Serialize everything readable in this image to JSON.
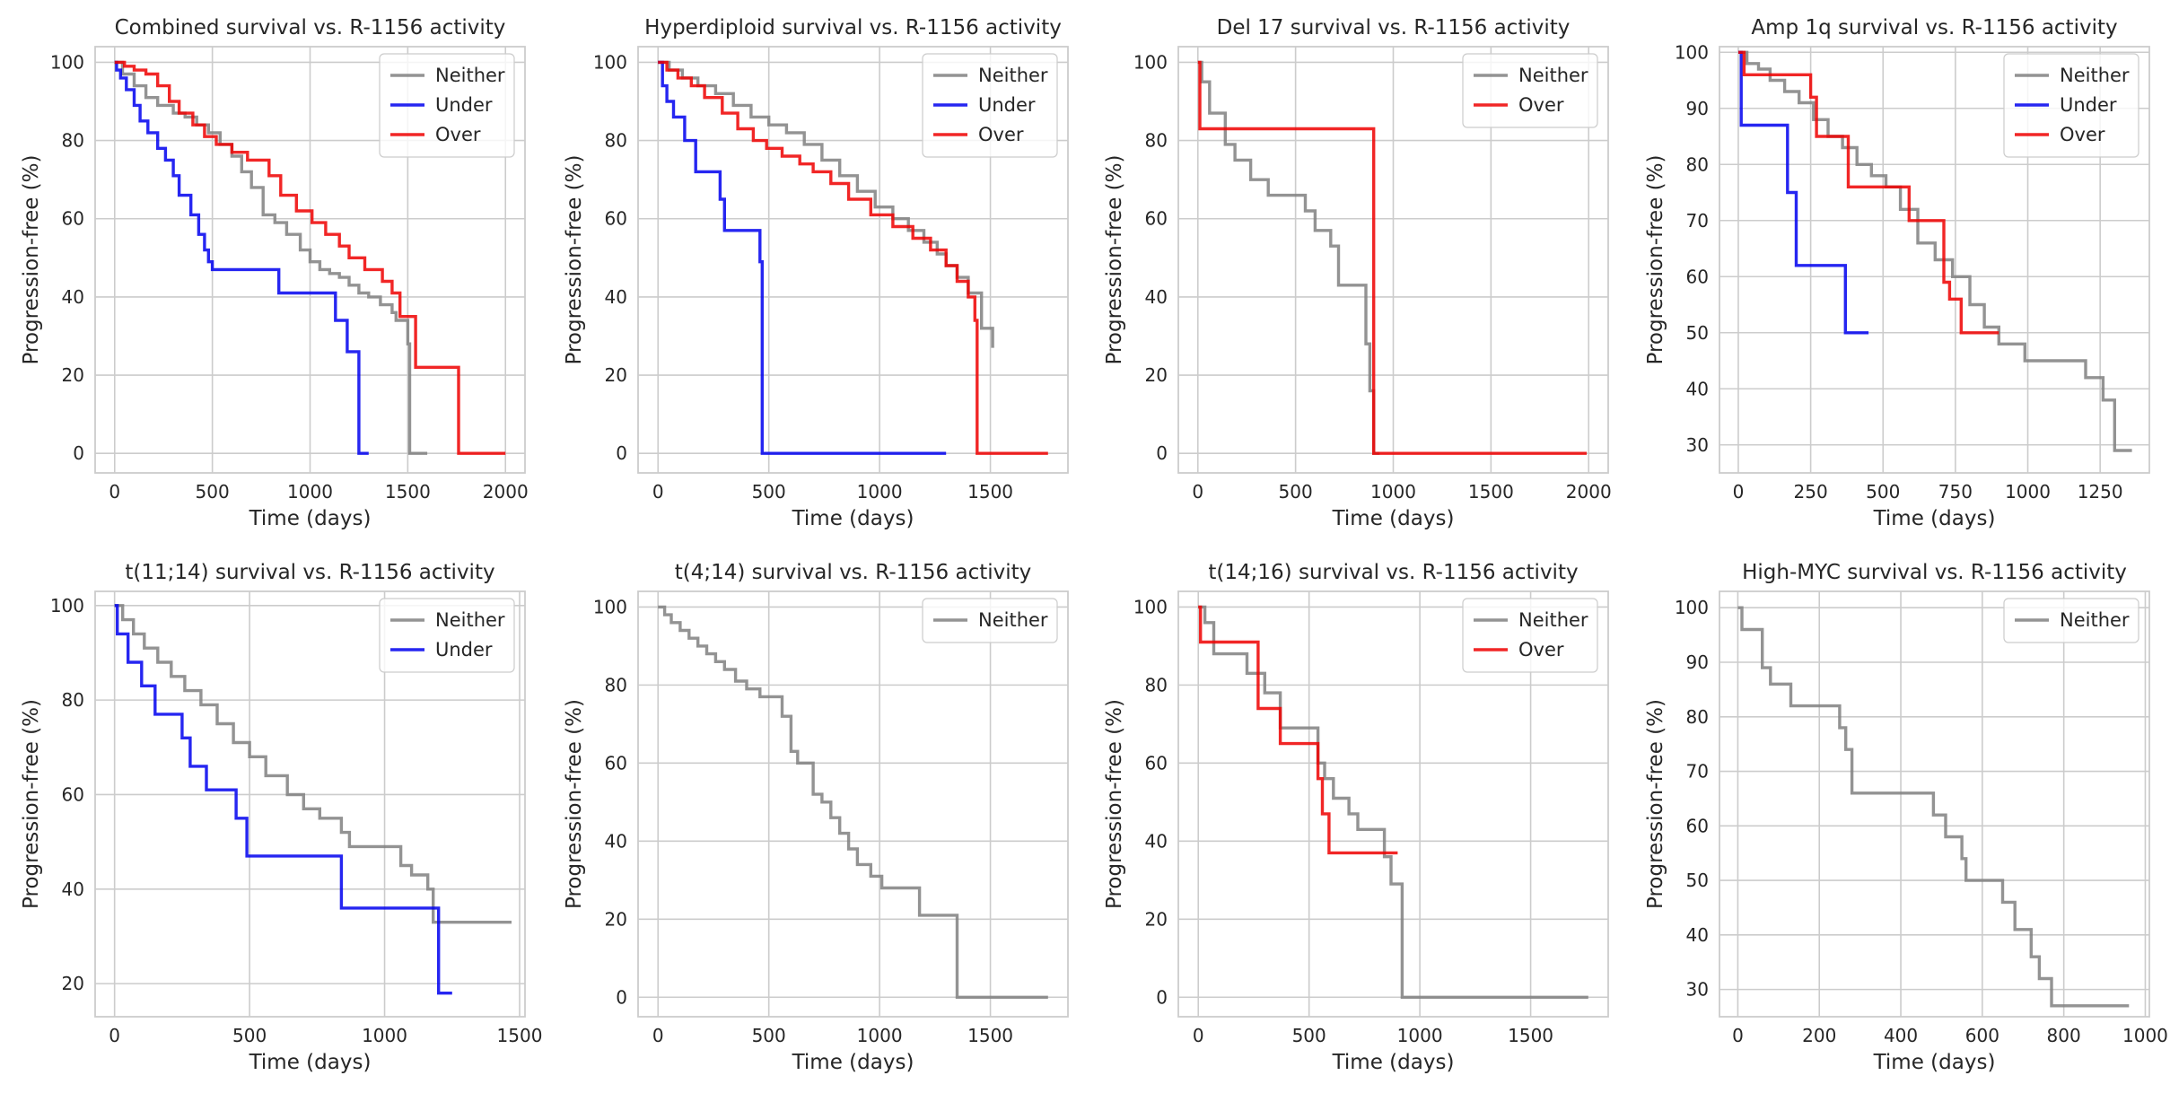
{
  "colors": {
    "Neither": "#808080",
    "Under": "#0000ee",
    "Over": "#ee0000"
  },
  "chart_data": [
    {
      "type": "line",
      "title": "Combined survival vs. R-1156 activity",
      "xlabel": "Time (days)",
      "ylabel": "Progression-free (%)",
      "xlim": [
        -100,
        2100
      ],
      "ylim": [
        -5,
        104
      ],
      "xticks": [
        0,
        500,
        1000,
        1500,
        2000
      ],
      "yticks": [
        0,
        20,
        40,
        60,
        80,
        100
      ],
      "legend": "top-right",
      "series": [
        {
          "name": "Neither",
          "x": [
            0,
            40,
            100,
            160,
            220,
            300,
            360,
            420,
            480,
            540,
            600,
            650,
            700,
            760,
            820,
            880,
            950,
            1000,
            1050,
            1100,
            1150,
            1200,
            1250,
            1300,
            1360,
            1420,
            1440,
            1470,
            1500,
            1510,
            1600
          ],
          "y": [
            100,
            97,
            94,
            91,
            89,
            87,
            86,
            84,
            82,
            79,
            76,
            72,
            68,
            61,
            59,
            56,
            52,
            49,
            47,
            46,
            45,
            43,
            41,
            40,
            38,
            36,
            34,
            34,
            28,
            0,
            0
          ]
        },
        {
          "name": "Under",
          "x": [
            0,
            10,
            30,
            60,
            100,
            130,
            170,
            220,
            260,
            300,
            330,
            390,
            430,
            460,
            480,
            500,
            840,
            1130,
            1190,
            1250,
            1300
          ],
          "y": [
            100,
            98,
            96,
            93,
            89,
            85,
            82,
            78,
            75,
            71,
            66,
            61,
            56,
            52,
            49,
            47,
            41,
            34,
            26,
            0,
            0
          ]
        },
        {
          "name": "Over",
          "x": [
            0,
            50,
            100,
            160,
            220,
            280,
            330,
            400,
            460,
            520,
            600,
            680,
            790,
            850,
            930,
            1010,
            1080,
            1150,
            1200,
            1280,
            1370,
            1420,
            1460,
            1540,
            1760,
            2000
          ],
          "y": [
            100,
            99,
            98,
            97,
            94,
            90,
            87,
            84,
            81,
            79,
            77,
            75,
            71,
            66,
            62,
            59,
            56,
            53,
            50,
            47,
            44,
            41,
            35,
            22,
            0,
            0
          ]
        }
      ]
    },
    {
      "type": "line",
      "title": "Hyperdiploid survival vs. R-1156 activity",
      "xlabel": "Time (days)",
      "ylabel": "Progression-free (%)",
      "xlim": [
        -90,
        1850
      ],
      "ylim": [
        -5,
        104
      ],
      "xticks": [
        0,
        500,
        1000,
        1500
      ],
      "yticks": [
        0,
        20,
        40,
        60,
        80,
        100
      ],
      "legend": "top-right",
      "series": [
        {
          "name": "Neither",
          "x": [
            0,
            50,
            110,
            180,
            260,
            340,
            420,
            500,
            580,
            660,
            740,
            820,
            900,
            980,
            1060,
            1130,
            1200,
            1260,
            1300,
            1350,
            1400,
            1460,
            1510
          ],
          "y": [
            100,
            98,
            96,
            94,
            92,
            89,
            86,
            84,
            82,
            79,
            75,
            71,
            67,
            63,
            60,
            57,
            54,
            51,
            48,
            45,
            41,
            32,
            27
          ]
        },
        {
          "name": "Under",
          "x": [
            0,
            20,
            40,
            70,
            120,
            170,
            280,
            300,
            460,
            470,
            1300
          ],
          "y": [
            100,
            94,
            90,
            86,
            80,
            72,
            65,
            57,
            49,
            0,
            0
          ]
        },
        {
          "name": "Over",
          "x": [
            0,
            40,
            90,
            150,
            210,
            290,
            360,
            430,
            490,
            560,
            640,
            700,
            780,
            860,
            960,
            1060,
            1150,
            1230,
            1300,
            1350,
            1400,
            1430,
            1440,
            1760
          ],
          "y": [
            100,
            98,
            96,
            94,
            91,
            87,
            83,
            80,
            78,
            76,
            74,
            72,
            69,
            65,
            61,
            58,
            55,
            52,
            48,
            44,
            40,
            34,
            0,
            0
          ]
        }
      ]
    },
    {
      "type": "line",
      "title": "Del 17 survival vs. R-1156 activity",
      "xlabel": "Time (days)",
      "ylabel": "Progression-free (%)",
      "xlim": [
        -100,
        2100
      ],
      "ylim": [
        -5,
        104
      ],
      "xticks": [
        0,
        500,
        1000,
        1500,
        2000
      ],
      "yticks": [
        0,
        20,
        40,
        60,
        80,
        100
      ],
      "legend": "top-right",
      "series": [
        {
          "name": "Neither",
          "x": [
            0,
            20,
            60,
            140,
            190,
            270,
            360,
            550,
            600,
            680,
            720,
            860,
            880,
            900,
            930
          ],
          "y": [
            100,
            95,
            87,
            79,
            75,
            70,
            66,
            62,
            57,
            53,
            43,
            28,
            16,
            0,
            0
          ]
        },
        {
          "name": "Over",
          "x": [
            0,
            10,
            900,
            1990
          ],
          "y": [
            100,
            83,
            0,
            0
          ]
        }
      ]
    },
    {
      "type": "line",
      "title": "Amp 1q survival vs. R-1156 activity",
      "xlabel": "Time (days)",
      "ylabel": "Progression-free (%)",
      "xlim": [
        -65,
        1420
      ],
      "ylim": [
        25,
        101
      ],
      "xticks": [
        0,
        250,
        500,
        750,
        1000,
        1250
      ],
      "yticks": [
        30,
        40,
        50,
        60,
        70,
        80,
        90,
        100
      ],
      "legend": "top-right",
      "series": [
        {
          "name": "Neither",
          "x": [
            0,
            30,
            70,
            110,
            160,
            210,
            260,
            310,
            360,
            410,
            460,
            510,
            560,
            620,
            680,
            740,
            800,
            850,
            900,
            990,
            1200,
            1260,
            1300,
            1360
          ],
          "y": [
            100,
            98,
            97,
            95,
            93,
            91,
            88,
            85,
            83,
            80,
            78,
            76,
            72,
            66,
            63,
            60,
            55,
            51,
            48,
            45,
            42,
            38,
            29,
            29
          ]
        },
        {
          "name": "Under",
          "x": [
            0,
            10,
            170,
            200,
            370,
            450
          ],
          "y": [
            100,
            87,
            75,
            62,
            50,
            50
          ]
        },
        {
          "name": "Over",
          "x": [
            0,
            20,
            250,
            270,
            380,
            590,
            710,
            730,
            770,
            900
          ],
          "y": [
            100,
            96,
            92,
            85,
            76,
            70,
            59,
            56,
            50,
            50
          ]
        }
      ]
    },
    {
      "type": "line",
      "title": "t(11;14) survival vs. R-1156 activity",
      "xlabel": "Time (days)",
      "ylabel": "Progression-free (%)",
      "xlim": [
        -72,
        1520
      ],
      "ylim": [
        13,
        103
      ],
      "xticks": [
        0,
        500,
        1000,
        1500
      ],
      "yticks": [
        20,
        40,
        60,
        80,
        100
      ],
      "legend": "top-right",
      "series": [
        {
          "name": "Neither",
          "x": [
            0,
            30,
            70,
            110,
            160,
            210,
            260,
            320,
            380,
            440,
            500,
            560,
            640,
            700,
            760,
            840,
            870,
            1060,
            1100,
            1160,
            1180,
            1470
          ],
          "y": [
            100,
            97,
            94,
            91,
            88,
            85,
            82,
            79,
            75,
            71,
            68,
            64,
            60,
            57,
            55,
            52,
            49,
            45,
            43,
            40,
            33,
            33
          ]
        },
        {
          "name": "Under",
          "x": [
            0,
            10,
            50,
            100,
            150,
            250,
            280,
            340,
            390,
            450,
            490,
            840,
            1200,
            1250
          ],
          "y": [
            100,
            94,
            88,
            83,
            77,
            72,
            66,
            61,
            61,
            55,
            47,
            36,
            18,
            18
          ]
        }
      ]
    },
    {
      "type": "line",
      "title": "t(4;14) survival vs. R-1156 activity",
      "xlabel": "Time (days)",
      "ylabel": "Progression-free (%)",
      "xlim": [
        -90,
        1850
      ],
      "ylim": [
        -5,
        104
      ],
      "xticks": [
        0,
        500,
        1000,
        1500
      ],
      "yticks": [
        0,
        20,
        40,
        60,
        80,
        100
      ],
      "legend": "top-right",
      "series": [
        {
          "name": "Neither",
          "x": [
            0,
            30,
            60,
            100,
            140,
            180,
            220,
            260,
            300,
            350,
            400,
            460,
            560,
            600,
            630,
            700,
            740,
            780,
            820,
            860,
            900,
            960,
            1010,
            1180,
            1350,
            1760
          ],
          "y": [
            100,
            98,
            96,
            94,
            92,
            90,
            88,
            86,
            84,
            81,
            79,
            77,
            72,
            63,
            60,
            52,
            50,
            46,
            42,
            38,
            34,
            31,
            28,
            21,
            0,
            0
          ]
        }
      ]
    },
    {
      "type": "line",
      "title": "t(14;16) survival vs. R-1156 activity",
      "xlabel": "Time (days)",
      "ylabel": "Progression-free (%)",
      "xlim": [
        -90,
        1850
      ],
      "ylim": [
        -5,
        104
      ],
      "xticks": [
        0,
        500,
        1000,
        1500
      ],
      "yticks": [
        0,
        20,
        40,
        60,
        80,
        100
      ],
      "legend": "top-right",
      "series": [
        {
          "name": "Neither",
          "x": [
            0,
            30,
            70,
            220,
            300,
            370,
            540,
            570,
            610,
            680,
            720,
            840,
            870,
            920,
            1760
          ],
          "y": [
            100,
            96,
            88,
            83,
            78,
            69,
            60,
            56,
            51,
            47,
            43,
            36,
            29,
            0,
            0
          ]
        },
        {
          "name": "Over",
          "x": [
            0,
            10,
            270,
            370,
            540,
            560,
            590,
            900
          ],
          "y": [
            100,
            91,
            74,
            65,
            56,
            47,
            37,
            37
          ]
        }
      ]
    },
    {
      "type": "line",
      "title": "High-MYC survival vs. R-1156 activity",
      "xlabel": "Time (days)",
      "ylabel": "Progression-free (%)",
      "xlim": [
        -45,
        1010
      ],
      "ylim": [
        25,
        103
      ],
      "xticks": [
        0,
        200,
        400,
        600,
        800,
        1000
      ],
      "yticks": [
        30,
        40,
        50,
        60,
        70,
        80,
        90,
        100
      ],
      "legend": "top-right",
      "series": [
        {
          "name": "Neither",
          "x": [
            0,
            10,
            60,
            80,
            130,
            250,
            265,
            280,
            480,
            510,
            550,
            560,
            650,
            680,
            720,
            740,
            770,
            960
          ],
          "y": [
            100,
            96,
            89,
            86,
            82,
            78,
            74,
            66,
            62,
            58,
            54,
            50,
            46,
            41,
            36,
            32,
            27,
            27
          ]
        }
      ]
    }
  ]
}
